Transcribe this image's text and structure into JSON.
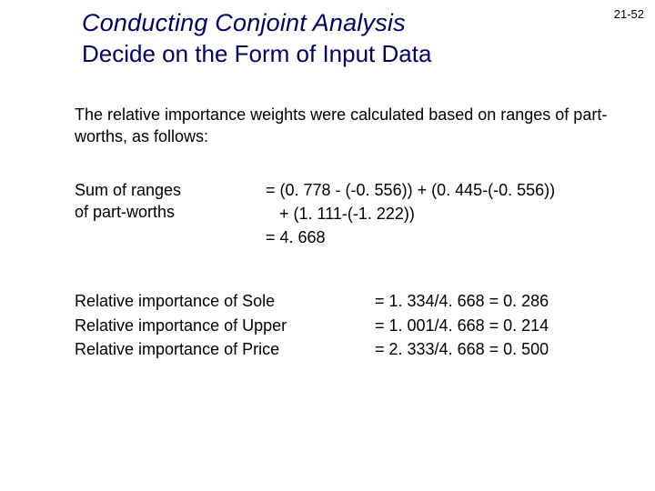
{
  "page_number": "21-52",
  "title_main": "Conducting Conjoint Analysis",
  "title_sub": "Decide on the Form of Input Data",
  "colors": {
    "title_color": "#000066",
    "body_color": "#000000",
    "background": "#ffffff"
  },
  "typography": {
    "title_main_fontsize": 27,
    "title_main_italic": true,
    "title_sub_fontsize": 26,
    "body_fontsize": 18,
    "font_family": "Verdana"
  },
  "intro_text": "The relative importance weights were calculated based on ranges of part-worths, as follows:",
  "sum_block": {
    "label_line1": "Sum of ranges",
    "label_line2": "of part-worths",
    "eq_line1": "= (0. 778 - (-0. 556)) + (0. 445-(-0. 556))",
    "eq_line2": "   + (1. 111-(-1. 222))",
    "eq_line3": "= 4. 668"
  },
  "relative": [
    {
      "label": "Relative importance of Sole",
      "eq": "= 1. 334/4. 668 = 0. 286"
    },
    {
      "label": "Relative importance of Upper",
      "eq": "= 1. 001/4. 668 = 0. 214"
    },
    {
      "label": "Relative importance of Price",
      "eq": "= 2. 333/4. 668 = 0. 500"
    }
  ]
}
